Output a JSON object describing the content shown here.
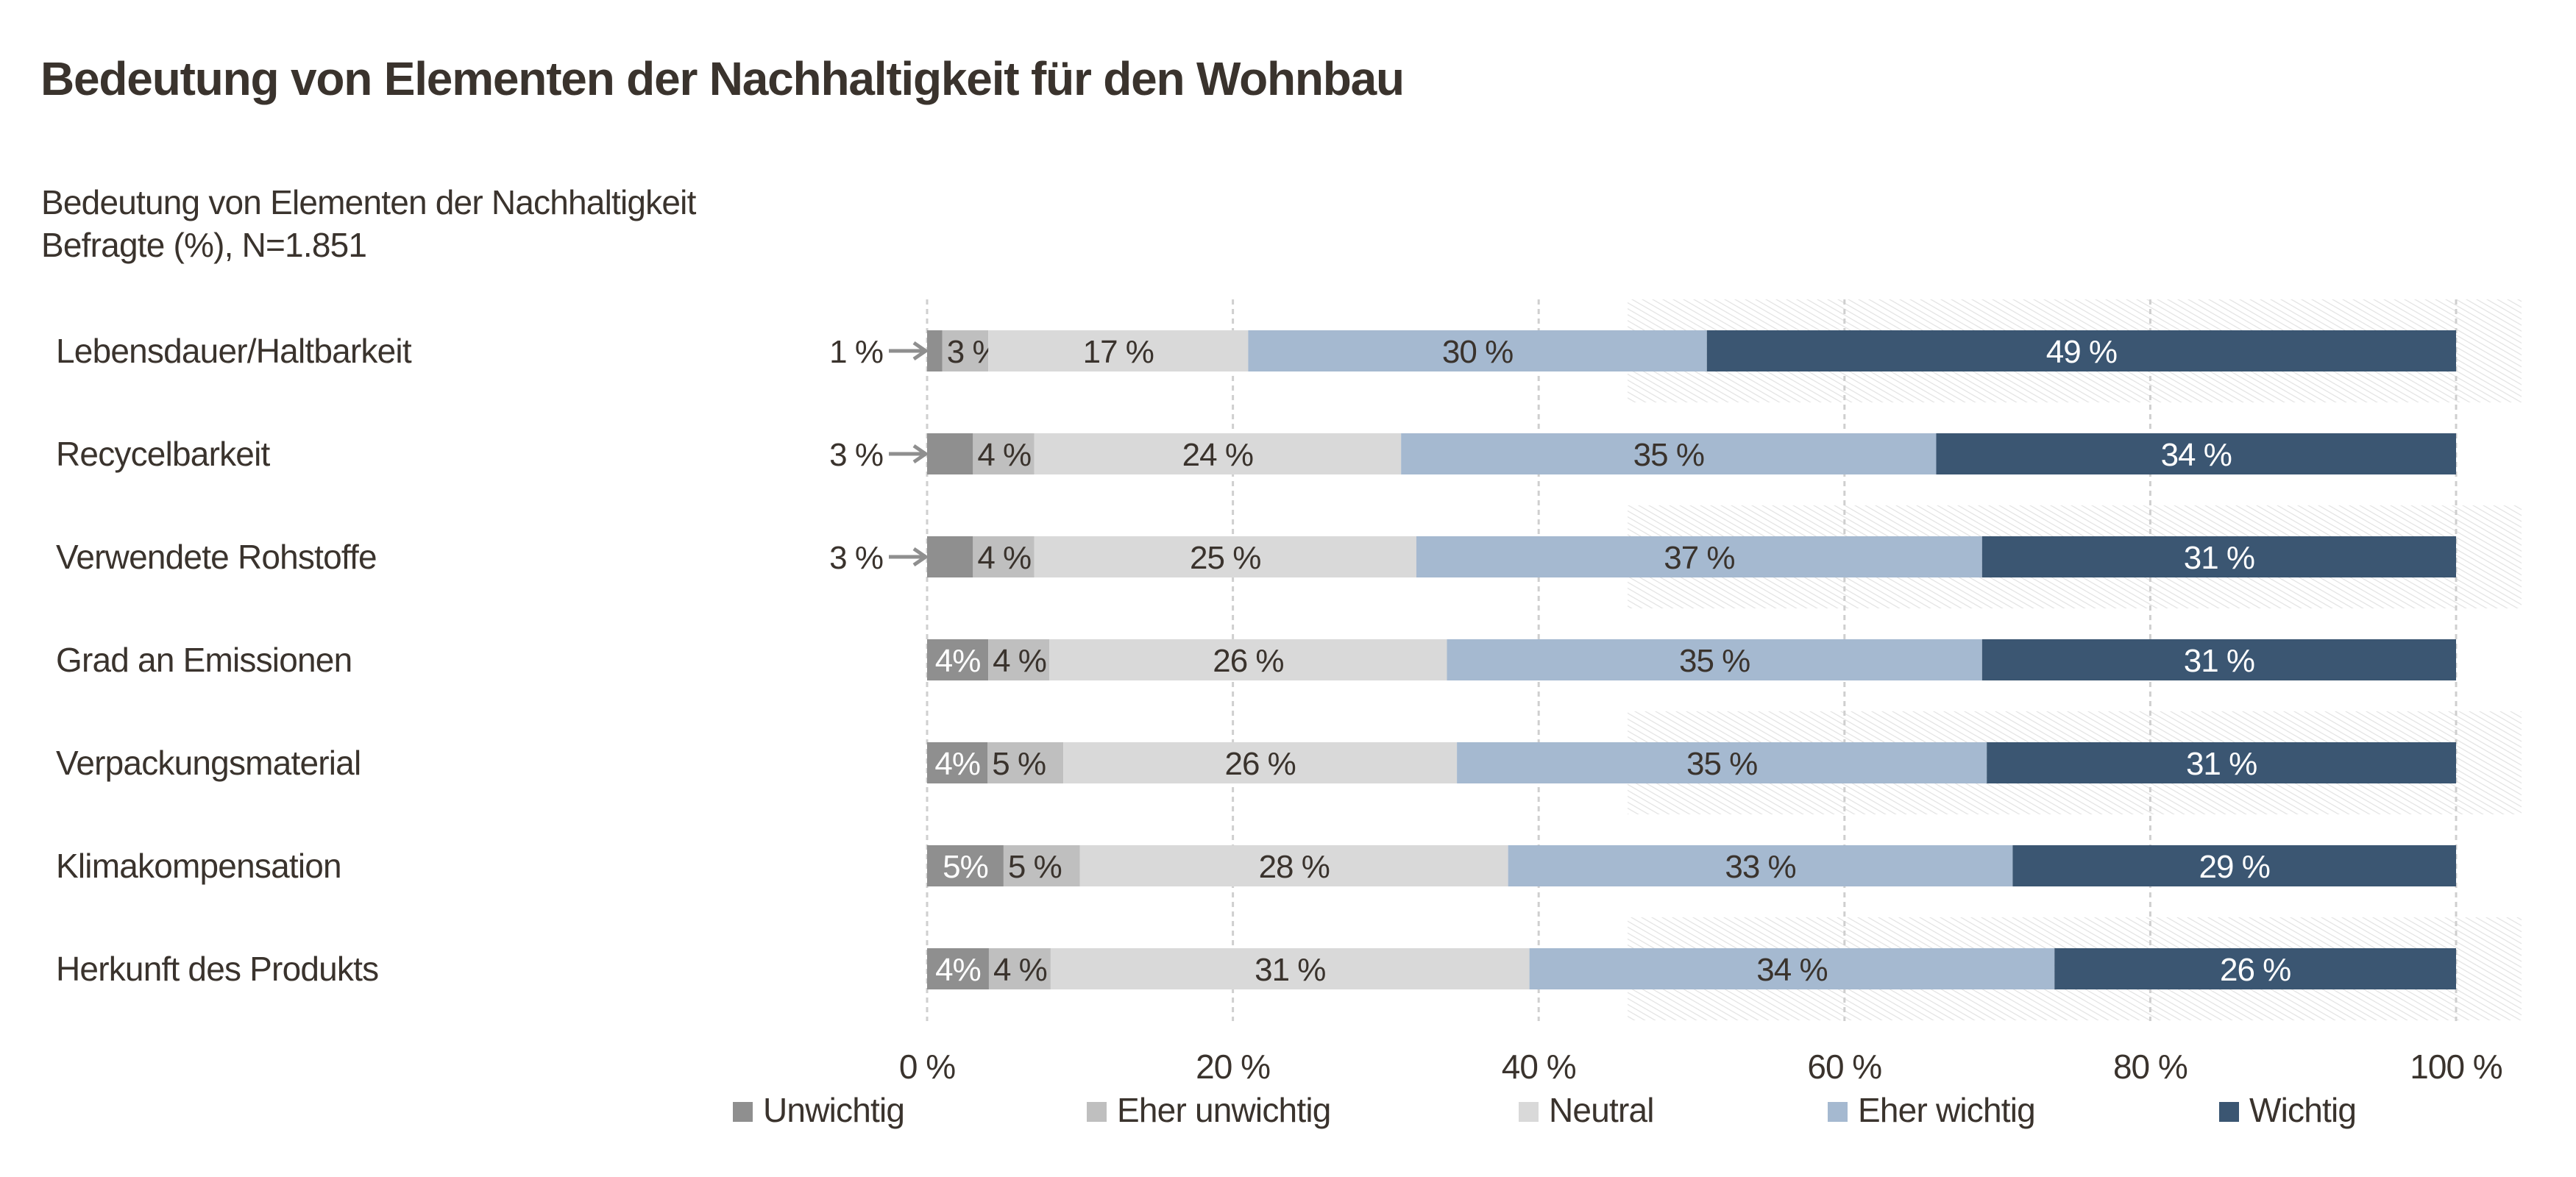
{
  "header": {
    "title": "Bedeutung von Elementen der Nachhaltigkeit für den Wohnbau",
    "subtitle_line1": "Bedeutung von Elementen der Nachhaltigkeit",
    "subtitle_line2": "Befragte (%), N=1.851"
  },
  "chart_data": {
    "type": "bar",
    "orientation": "horizontal",
    "stacked": true,
    "title": "Bedeutung von Elementen der Nachhaltigkeit",
    "subtitle": "Befragte (%), N=1.851",
    "xlabel": "",
    "ylabel": "",
    "xlim": [
      0,
      100
    ],
    "x_ticks": [
      0,
      20,
      40,
      60,
      80,
      100
    ],
    "x_tick_labels": [
      "0 %",
      "20 %",
      "40 %",
      "60 %",
      "80 %",
      "100 %"
    ],
    "grid": "vertical dashed",
    "legend_position": "bottom",
    "categories": [
      "Lebensdauer/Haltbarkeit",
      "Recycelbarkeit",
      "Verwendete Rohstoffe",
      "Grad an Emissionen",
      "Verpackungsmaterial",
      "Klimakompensation",
      "Herkunft des Produkts"
    ],
    "series": [
      {
        "name": "Unwichtig",
        "color": "#8f8f8f",
        "values": [
          1,
          3,
          3,
          4,
          4,
          5,
          4
        ],
        "labels": [
          "1 %",
          "3 %",
          "3 %",
          "4%",
          "4%",
          "5%",
          "4%"
        ],
        "label_outside": [
          true,
          true,
          true,
          false,
          false,
          false,
          false
        ]
      },
      {
        "name": "Eher unwichtig",
        "color": "#bfbfbf",
        "values": [
          3,
          4,
          4,
          4,
          5,
          5,
          4
        ],
        "labels": [
          "3 %",
          "4 %",
          "4 %",
          "4 %",
          "5 %",
          "5 %",
          "4 %"
        ]
      },
      {
        "name": "Neutral",
        "color": "#d9d9d9",
        "values": [
          17,
          24,
          25,
          26,
          26,
          28,
          31
        ],
        "labels": [
          "17 %",
          "24 %",
          "25 %",
          "26 %",
          "26 %",
          "28 %",
          "31 %"
        ]
      },
      {
        "name": "Eher wichtig",
        "color": "#a5b9d0",
        "values": [
          30,
          35,
          37,
          35,
          35,
          33,
          34
        ],
        "labels": [
          "30 %",
          "35 %",
          "37 %",
          "35 %",
          "35 %",
          "33 %",
          "34 %"
        ]
      },
      {
        "name": "Wichtig",
        "color": "#3b5672",
        "values": [
          49,
          34,
          31,
          31,
          31,
          29,
          26
        ],
        "labels": [
          "49 %",
          "34 %",
          "31 %",
          "31 %",
          "31 %",
          "29 %",
          "26 %"
        ]
      }
    ],
    "highlighted_rows": [
      0,
      2,
      4,
      6
    ]
  },
  "colors": {
    "text": "#3a332d",
    "grid": "#cfcfcf",
    "hatch": "#e2e2e2",
    "arrow": "#8f8f8f",
    "label_on_dark": "#ffffff"
  }
}
